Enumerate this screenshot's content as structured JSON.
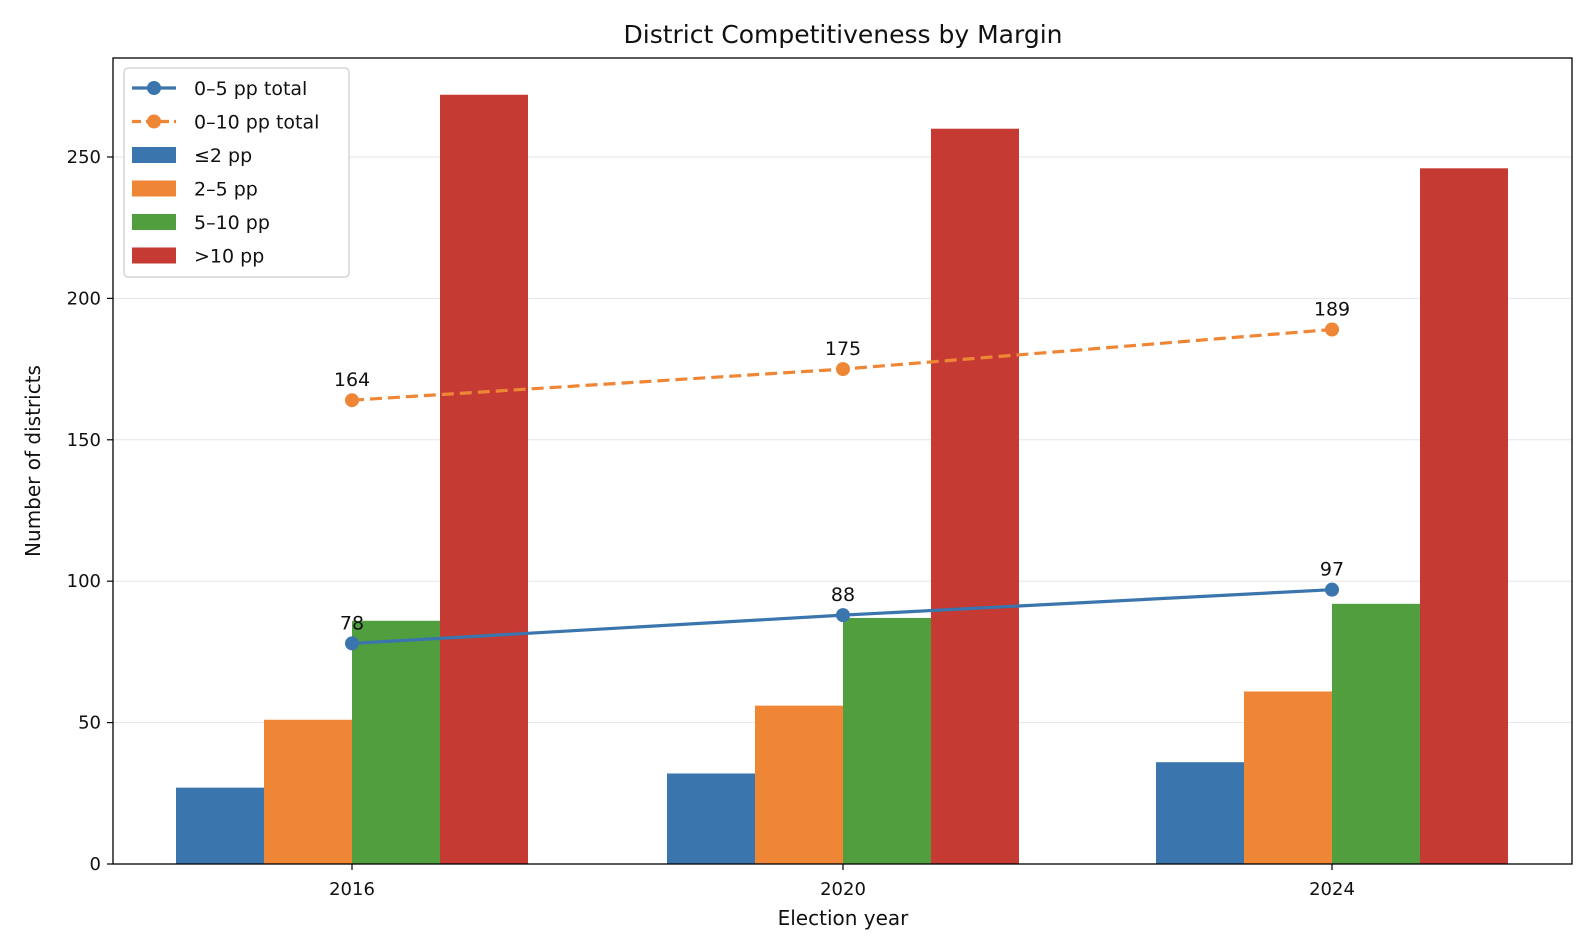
{
  "chart_data": {
    "type": "bar",
    "title": "District Competitiveness by Margin",
    "xlabel": "Election year",
    "ylabel": "Number of districts",
    "categories": [
      "2016",
      "2020",
      "2024"
    ],
    "ylim": [
      0,
      285
    ],
    "yticks": [
      0,
      50,
      100,
      150,
      200,
      250
    ],
    "grid": "y",
    "legend_position": "top-left",
    "series": [
      {
        "name": "≤2 pp",
        "kind": "bar",
        "color": "#3a75ae",
        "values": [
          27,
          32,
          36
        ]
      },
      {
        "name": "2–5 pp",
        "kind": "bar",
        "color": "#ef8636",
        "values": [
          51,
          56,
          61
        ]
      },
      {
        "name": "5–10 pp",
        "kind": "bar",
        "color": "#519e3e",
        "values": [
          86,
          87,
          92
        ]
      },
      {
        "name": ">10 pp",
        "kind": "bar",
        "color": "#c53a32",
        "values": [
          272,
          260,
          246
        ]
      }
    ],
    "lines": [
      {
        "name": "0–5 pp total",
        "style": "solid",
        "color": "#3a75ae",
        "values": [
          78,
          88,
          97
        ],
        "labels": [
          "78",
          "88",
          "97"
        ]
      },
      {
        "name": "0–10 pp total",
        "style": "dashed",
        "color": "#ef8636",
        "values": [
          164,
          175,
          189
        ],
        "labels": [
          "164",
          "175",
          "189"
        ]
      }
    ]
  }
}
